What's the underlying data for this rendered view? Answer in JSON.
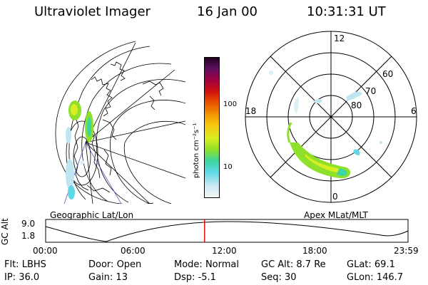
{
  "header": {
    "instrument": "Ultraviolet Imager",
    "date": "16 Jan 00",
    "time": "10:31:31 UT"
  },
  "colorbar": {
    "unit_label": "photon cm⁻²s⁻¹",
    "ticks": [
      "100",
      "10"
    ]
  },
  "left_panel": {
    "caption": "Geographic Lat/Lon"
  },
  "polar_panel": {
    "caption": "Apex MLat/MLT",
    "mlt_labels": {
      "top": "12",
      "left": "18",
      "right": "6",
      "bottom": "0"
    },
    "lat_labels": [
      "60",
      "70",
      "80"
    ]
  },
  "altitude_strip": {
    "ylabel": "GC Alt",
    "y_ticks": [
      "9.0",
      "1.8"
    ],
    "time_ticks": [
      "00:00",
      "06:00",
      "12:00",
      "18:00",
      "23:59"
    ],
    "current_time_marker": 10.525
  },
  "info_rows": [
    [
      {
        "label": "Flt:",
        "value": "LBHS"
      },
      {
        "label": "Door:",
        "value": "Open"
      },
      {
        "label": "Mode:",
        "value": "Normal"
      },
      {
        "label": "GC Alt:",
        "value": "8.7 Re"
      },
      {
        "label": "GLat:",
        "value": "69.1"
      }
    ],
    [
      {
        "label": "IP:",
        "value": "36.0"
      },
      {
        "label": "Gain:",
        "value": "13"
      },
      {
        "label": "Dsp:",
        "value": "-5.1"
      },
      {
        "label": "Seq:",
        "value": "30"
      },
      {
        "label": "GLon:",
        "value": "146.7"
      }
    ]
  ],
  "colors": {
    "marker": "#e00000",
    "colorbar_stops": [
      "#f4f4f4",
      "#cfe9f5",
      "#5fd8e6",
      "#3cd6a0",
      "#8ee02a",
      "#d8ee22",
      "#f8c810",
      "#f29000",
      "#e85000",
      "#d01010",
      "#a00040",
      "#601060",
      "#200020"
    ]
  }
}
